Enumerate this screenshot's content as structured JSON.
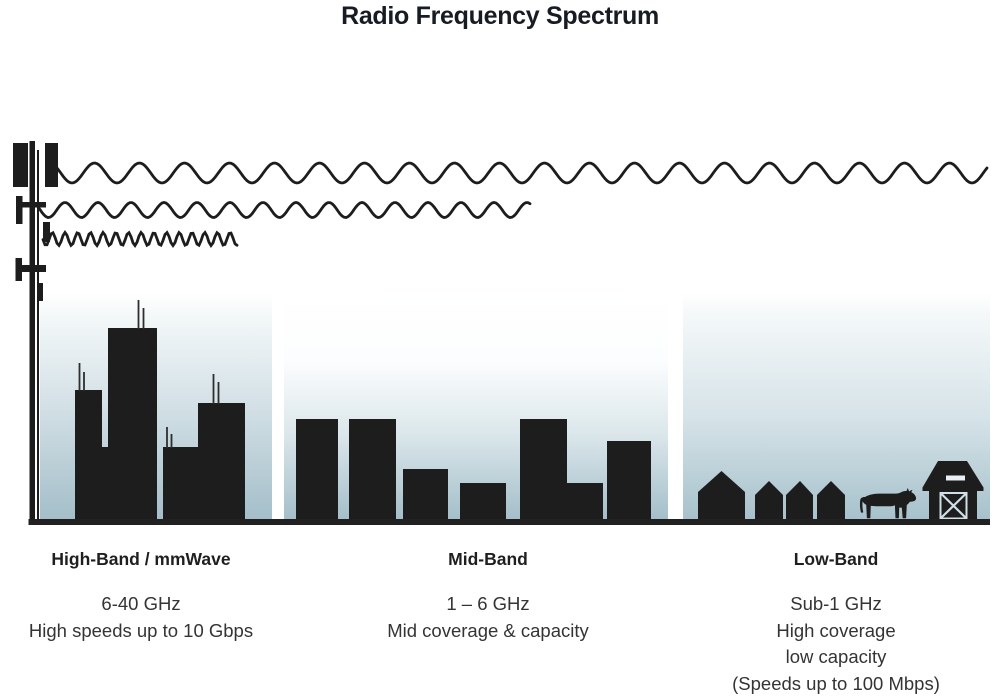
{
  "title": "Radio Frequency Spectrum",
  "colors": {
    "ink": "#1d1d1d",
    "panel_gradient_top": "#ffffff",
    "panel_gradient_bottom": "#a4bec9",
    "heading_text": "#1f1f21",
    "body_text": "#343434"
  },
  "bands": [
    {
      "name": "High-Band / mmWave",
      "details": [
        "6-40 GHz",
        "High speeds up to 10 Gbps"
      ],
      "wave": "short wavelength",
      "scene": "dense city skyline with rooftop antennas"
    },
    {
      "name": "Mid-Band",
      "details": [
        "1 – 6 GHz",
        "Mid coverage & capacity"
      ],
      "wave": "medium wavelength",
      "scene": "mid-rise buildings"
    },
    {
      "name": "Low-Band",
      "details": [
        "Sub-1 GHz",
        "High coverage",
        "low capacity",
        "(Speeds up to 100 Mbps)"
      ],
      "wave": "long wavelength",
      "scene": "rural houses, cow and barn"
    }
  ]
}
